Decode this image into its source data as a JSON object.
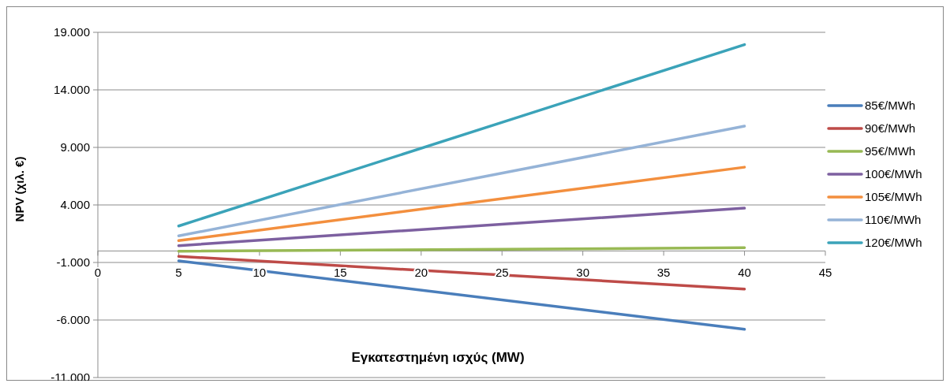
{
  "chart_data": {
    "type": "line",
    "xlabel": "Εγκατεστημένη ισχύς  (MW)",
    "ylabel": "NPV (χιλ. €)",
    "xlim": [
      0,
      45
    ],
    "xticks": [
      0,
      5,
      10,
      15,
      20,
      25,
      30,
      35,
      40,
      45
    ],
    "ylim": [
      -11000,
      19000
    ],
    "yticks": [
      {
        "value": -11000,
        "label": "-11.000"
      },
      {
        "value": -6000,
        "label": "-6.000"
      },
      {
        "value": -1000,
        "label": "-1.000"
      },
      {
        "value": 4000,
        "label": "4.000"
      },
      {
        "value": 9000,
        "label": "9.000"
      },
      {
        "value": 14000,
        "label": "14.000"
      },
      {
        "value": 19000,
        "label": "19.000"
      }
    ],
    "grid": "y",
    "x": [
      5,
      40
    ],
    "legend": "right",
    "marker": "none",
    "line_style": "solid",
    "series": [
      {
        "name": "85€/MWh",
        "color": "#4a7ebb",
        "values": [
          -860,
          -6800
        ]
      },
      {
        "name": "90€/MWh",
        "color": "#be4b48",
        "values": [
          -470,
          -3310
        ]
      },
      {
        "name": "95€/MWh",
        "color": "#98b954",
        "values": [
          -20,
          280
        ]
      },
      {
        "name": "100€/MWh",
        "color": "#7d60a0",
        "values": [
          460,
          3720
        ]
      },
      {
        "name": "105€/MWh",
        "color": "#f38f3e",
        "values": [
          900,
          7280
        ]
      },
      {
        "name": "110€/MWh",
        "color": "#95b3d7",
        "values": [
          1310,
          10850
        ]
      },
      {
        "name": "120€/MWh",
        "color": "#3ba3b9",
        "values": [
          2170,
          17930
        ]
      }
    ]
  }
}
